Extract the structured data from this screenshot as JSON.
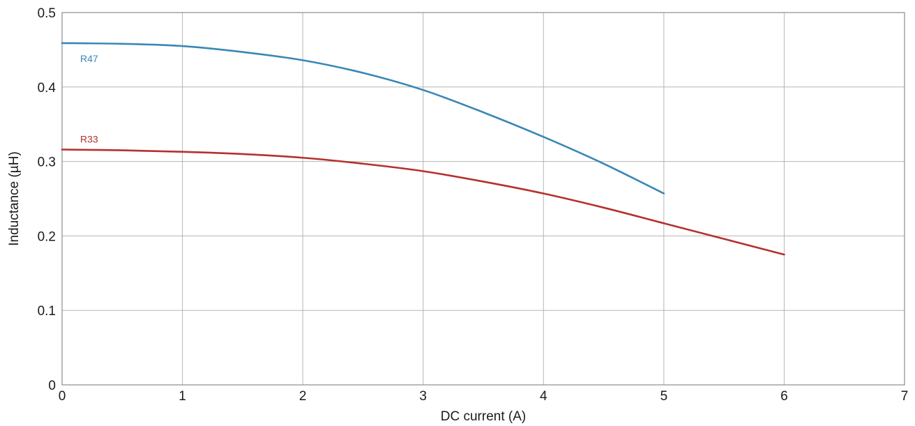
{
  "chart_data": {
    "type": "line",
    "xlabel": "DC current (A)",
    "ylabel": "Inductance (µH)",
    "xlim": [
      0,
      7
    ],
    "ylim": [
      0,
      0.5
    ],
    "xticks": [
      0,
      1,
      2,
      3,
      4,
      5,
      6,
      7
    ],
    "xtick_labels": [
      "0",
      "1",
      "2",
      "3",
      "4",
      "5",
      "6",
      "7"
    ],
    "yticks": [
      0,
      0.1,
      0.2,
      0.3,
      0.4,
      0.5
    ],
    "ytick_labels": [
      "0",
      "0.1",
      "0.2",
      "0.3",
      "0.4",
      "0.5"
    ],
    "grid": true,
    "legend": "none",
    "series": [
      {
        "name": "R47",
        "color": "#3a87b5",
        "x": [
          0,
          0.5,
          1,
          1.5,
          2,
          2.5,
          3,
          3.5,
          4,
          4.5,
          5
        ],
        "y": [
          0.459,
          0.458,
          0.455,
          0.447,
          0.436,
          0.419,
          0.396,
          0.366,
          0.333,
          0.297,
          0.257
        ]
      },
      {
        "name": "R33",
        "color": "#b5302f",
        "x": [
          0,
          0.5,
          1,
          1.5,
          2,
          2.5,
          3,
          3.5,
          4,
          4.5,
          5,
          5.5,
          6
        ],
        "y": [
          0.316,
          0.315,
          0.313,
          0.31,
          0.305,
          0.297,
          0.287,
          0.273,
          0.257,
          0.238,
          0.217,
          0.196,
          0.175
        ]
      }
    ]
  }
}
